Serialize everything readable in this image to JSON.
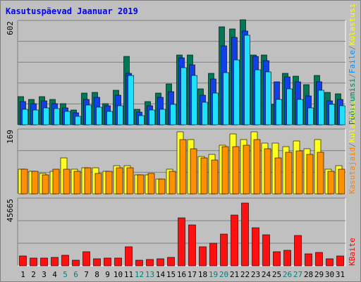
{
  "colors": {
    "background": "#c0c0c0",
    "plot_background": "#c0c0c0",
    "grid": "#808080",
    "title_text": "#0000ff",
    "day_weekday": "#000000",
    "day_weekend": "#008080",
    "label_pageviews": "#008060",
    "label_hits": "#0000ff",
    "label_files": "#0090ff",
    "label_visits": "#ff8000",
    "label_sites": "#ffff00",
    "label_kbytes": "#ff0000",
    "bar_pageviews": "#007858",
    "bar_hits": "#1040e8",
    "bar_files": "#20e0ff",
    "bar_visits": "#ff9000",
    "bar_sites": "#ffff20",
    "bar_kbytes": "#ff1010"
  },
  "chart_data": {
    "type": "bar",
    "title": "Kasutuspäevad Jaanuar 2019",
    "categories": [
      "1",
      "2",
      "3",
      "4",
      "5",
      "6",
      "7",
      "8",
      "9",
      "10",
      "11",
      "12",
      "13",
      "14",
      "15",
      "16",
      "17",
      "18",
      "19",
      "20",
      "21",
      "22",
      "23",
      "24",
      "25",
      "26",
      "27",
      "28",
      "29",
      "30",
      "31"
    ],
    "weekend_days": [
      "5",
      "6",
      "12",
      "13",
      "19",
      "20",
      "26",
      "27"
    ],
    "panels": [
      {
        "name": "top",
        "ymax_label": "602",
        "ylim": [
          0,
          602
        ],
        "legend": [
          {
            "text": "Pöördumisi",
            "color_key": "label_pageviews"
          },
          {
            "text": "/",
            "color_key": "grid"
          },
          {
            "text": "Faile",
            "color_key": "label_files"
          },
          {
            "text": "/",
            "color_key": "grid"
          },
          {
            "text": "Külastusi",
            "color_key": "label_sites"
          }
        ],
        "series": [
          {
            "name": "Pöördumisi",
            "color_key": "bar_pageviews",
            "values": [
              165,
              150,
              165,
              150,
              125,
              85,
              185,
              190,
              125,
              200,
              400,
              90,
              135,
              185,
              240,
              410,
              410,
              210,
              300,
              575,
              560,
              615,
              410,
              410,
              120,
              300,
              285,
              235,
              290,
              190,
              180
            ]
          },
          {
            "name": "Külastusi",
            "color_key": "bar_hits",
            "values": [
              135,
              125,
              140,
              125,
              100,
              70,
              150,
              160,
              110,
              175,
              300,
              75,
              110,
              160,
              195,
              390,
              350,
              175,
              270,
              460,
              510,
              550,
              400,
              375,
              250,
              280,
              250,
              170,
              250,
              140,
              150
            ]
          },
          {
            "name": "Faile",
            "color_key": "bar_files",
            "values": [
              90,
              85,
              100,
              95,
              80,
              50,
              115,
              105,
              80,
              110,
              290,
              55,
              85,
              90,
              120,
              335,
              290,
              130,
              185,
              305,
              380,
              525,
              320,
              310,
              150,
              210,
              150,
              100,
              200,
              120,
              110
            ]
          }
        ]
      },
      {
        "name": "middle",
        "ymax_label": "169",
        "ylim": [
          0,
          169
        ],
        "legend": [
          {
            "text": "Kasutajaid",
            "color_key": "label_visits"
          },
          {
            "text": "/",
            "color_key": "grid"
          },
          {
            "text": "Külastusi",
            "color_key": "label_sites"
          }
        ],
        "series": [
          {
            "name": "Kasutajaid",
            "color_key": "bar_sites",
            "values": [
              65,
              60,
              55,
              60,
              95,
              65,
              70,
              70,
              60,
              75,
              75,
              50,
              50,
              40,
              65,
              165,
              145,
              100,
              105,
              130,
              160,
              145,
              165,
              135,
              135,
              125,
              140,
              120,
              145,
              65,
              75
            ]
          },
          {
            "name": "Külastusi",
            "color_key": "bar_visits",
            "values": [
              65,
              60,
              50,
              65,
              65,
              60,
              70,
              55,
              60,
              70,
              70,
              50,
              55,
              40,
              60,
              145,
              120,
              95,
              90,
              125,
              125,
              130,
              145,
              120,
              95,
              110,
              115,
              105,
              110,
              60,
              65
            ]
          }
        ]
      },
      {
        "name": "bottom",
        "ymax_label": "45665",
        "ylim": [
          0,
          45665
        ],
        "legend": [
          {
            "text": "KBaite",
            "color_key": "label_kbytes"
          }
        ],
        "series": [
          {
            "name": "KBaite",
            "color_key": "bar_kbytes",
            "values": [
              7000,
              5500,
              5500,
              6000,
              7500,
              4000,
              9500,
              5000,
              5500,
              5500,
              13000,
              4000,
              4500,
              5000,
              6000,
              33000,
              28000,
              13000,
              15500,
              22000,
              35000,
              43000,
              26000,
              21500,
              9500,
              10500,
              21000,
              8500,
              9000,
              5000,
              7000
            ]
          }
        ]
      }
    ]
  }
}
